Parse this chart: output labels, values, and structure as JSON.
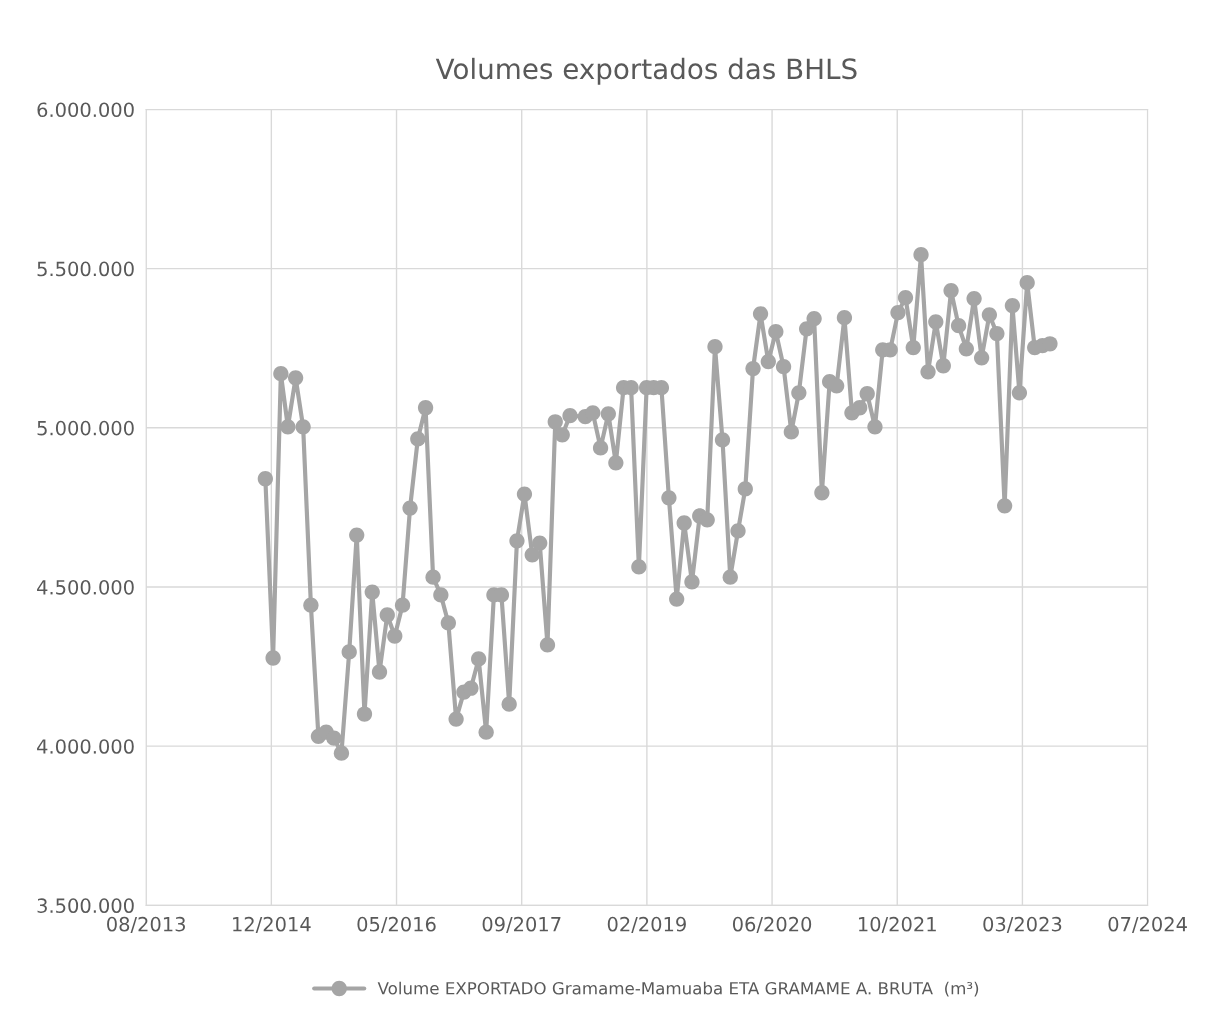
{
  "chart_data": {
    "type": "line",
    "title": "Volumes exportados das BHLS",
    "x": [
      "2014-12",
      "2015-01",
      "2015-02",
      "2015-03",
      "2015-04",
      "2015-05",
      "2015-06",
      "2015-07",
      "2015-08",
      "2015-09",
      "2015-10",
      "2015-11",
      "2015-12",
      "2016-01",
      "2016-02",
      "2016-03",
      "2016-04",
      "2016-05",
      "2016-06",
      "2016-07",
      "2016-08",
      "2016-09",
      "2016-10",
      "2016-11",
      "2016-12",
      "2017-01",
      "2017-02",
      "2017-03",
      "2017-04",
      "2017-05",
      "2017-06",
      "2017-07",
      "2017-08",
      "2017-09",
      "2017-10",
      "2017-11",
      "2017-12",
      "2018-01",
      "2018-02",
      "2018-03",
      "2018-04",
      "2018-06",
      "2018-07",
      "2018-08",
      "2018-09",
      "2018-10",
      "2018-11",
      "2018-12",
      "2019-01",
      "2019-02",
      "2019-03",
      "2019-04",
      "2019-05",
      "2019-06",
      "2019-07",
      "2019-08",
      "2019-09",
      "2019-10",
      "2019-11",
      "2019-12",
      "2020-01",
      "2020-02",
      "2020-03",
      "2020-04",
      "2020-05",
      "2020-06",
      "2020-07",
      "2020-08",
      "2020-09",
      "2020-10",
      "2020-11",
      "2020-12",
      "2021-01",
      "2021-02",
      "2021-03",
      "2021-04",
      "2021-05",
      "2021-06",
      "2021-07",
      "2021-08",
      "2021-09",
      "2021-10",
      "2021-11",
      "2021-12",
      "2022-01",
      "2022-02",
      "2022-03",
      "2022-04",
      "2022-05",
      "2022-06",
      "2022-07",
      "2022-08",
      "2022-09",
      "2022-10",
      "2022-11",
      "2022-12",
      "2023-01",
      "2023-02",
      "2023-03",
      "2023-04",
      "2023-05",
      "2023-06",
      "2023-07"
    ],
    "series": [
      {
        "name": "Volume EXPORTADO Gramame-Mamuaba ETA GRAMAME A. BRUTA  (m³)",
        "color": "#a5a5a5",
        "values": [
          4840000,
          4277000,
          5170000,
          5003000,
          5157000,
          5003000,
          4443000,
          4031000,
          4044000,
          4025000,
          3978000,
          4296000,
          4663000,
          4101000,
          4484000,
          4233000,
          4412000,
          4346000,
          4443000,
          4748000,
          4965000,
          5063000,
          4531000,
          4475000,
          4387000,
          4085000,
          4170000,
          4182000,
          4274000,
          4044000,
          4475000,
          4475000,
          4132000,
          4645000,
          4792000,
          4601000,
          4638000,
          4318000,
          5019000,
          4978000,
          5038000,
          5035000,
          5047000,
          4937000,
          5044000,
          4890000,
          5126000,
          5126000,
          4563000,
          5126000,
          5126000,
          5126000,
          4780000,
          4462000,
          4701000,
          4516000,
          4723000,
          4711000,
          5255000,
          4962000,
          4531000,
          4676000,
          4808000,
          5186000,
          5358000,
          5208000,
          5302000,
          5192000,
          4987000,
          5110000,
          5311000,
          5343000,
          4796000,
          5145000,
          5132000,
          5346000,
          5047000,
          5063000,
          5107000,
          5003000,
          5245000,
          5245000,
          5362000,
          5409000,
          5252000,
          5544000,
          5176000,
          5333000,
          5195000,
          5431000,
          5321000,
          5248000,
          5406000,
          5220000,
          5355000,
          5296000,
          4755000,
          5384000,
          5110000,
          5456000,
          5252000,
          5258000,
          5264000
        ]
      }
    ],
    "xlim": [
      "2013-08-12",
      "2024-07-25"
    ],
    "xticks": [
      {
        "value": "2013-08-12",
        "label": "08/2013"
      },
      {
        "value": "2014-12-25",
        "label": "12/2014"
      },
      {
        "value": "2016-05-08",
        "label": "05/2016"
      },
      {
        "value": "2017-09-20",
        "label": "09/2017"
      },
      {
        "value": "2019-02-02",
        "label": "02/2019"
      },
      {
        "value": "2020-06-16",
        "label": "06/2020"
      },
      {
        "value": "2021-10-29",
        "label": "10/2021"
      },
      {
        "value": "2023-03-13",
        "label": "03/2023"
      },
      {
        "value": "2024-07-25",
        "label": "07/2024"
      }
    ],
    "ylim": [
      3500000,
      6000000
    ],
    "yticks": [
      {
        "value": 3500000,
        "label": "3.500.000"
      },
      {
        "value": 4000000,
        "label": "4.000.000"
      },
      {
        "value": 4500000,
        "label": "4.500.000"
      },
      {
        "value": 5000000,
        "label": "5.000.000"
      },
      {
        "value": 5500000,
        "label": "5.500.000"
      },
      {
        "value": 6000000,
        "label": "6.000.000"
      }
    ],
    "grid": true,
    "legend": "bottom",
    "marker": "circle",
    "line_style": "solid"
  }
}
